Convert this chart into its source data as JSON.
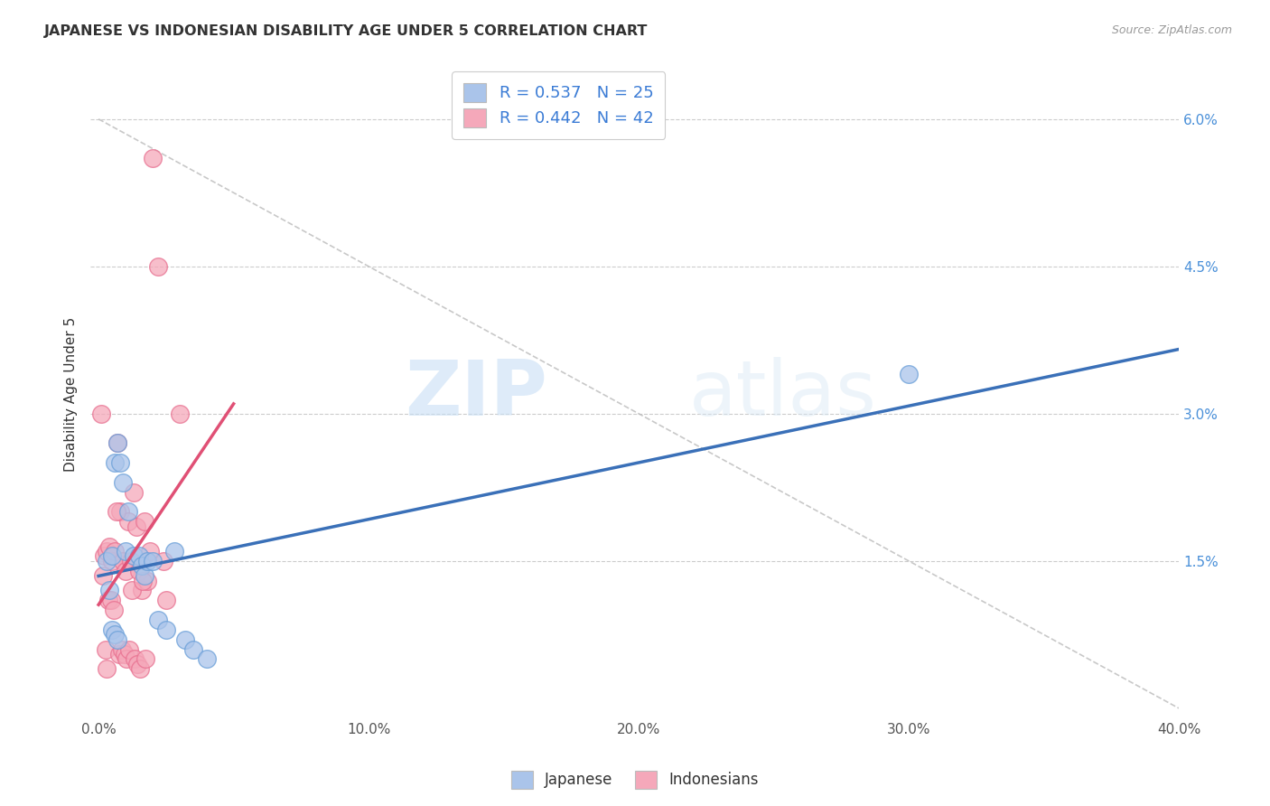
{
  "title": "JAPANESE VS INDONESIAN DISABILITY AGE UNDER 5 CORRELATION CHART",
  "source": "Source: ZipAtlas.com",
  "xlabel_ticks": [
    "0.0%",
    "10.0%",
    "20.0%",
    "30.0%",
    "40.0%"
  ],
  "xlabel_tick_vals": [
    0.0,
    10.0,
    20.0,
    30.0,
    40.0
  ],
  "ylabel_ticks": [
    "1.5%",
    "3.0%",
    "4.5%",
    "6.0%"
  ],
  "ylabel_tick_vals": [
    1.5,
    3.0,
    4.5,
    6.0
  ],
  "ylabel": "Disability Age Under 5",
  "xlim": [
    -0.3,
    40.0
  ],
  "ylim": [
    -0.1,
    6.5
  ],
  "japanese_color": "#aac4ea",
  "indonesian_color": "#f5a8ba",
  "japanese_edge": "#6a9fd8",
  "indonesian_edge": "#e87090",
  "japanese_R": 0.537,
  "japanese_N": 25,
  "indonesian_R": 0.442,
  "indonesian_N": 42,
  "japanese_scatter_x": [
    0.3,
    0.5,
    0.6,
    0.7,
    0.8,
    0.9,
    1.0,
    1.1,
    1.3,
    1.5,
    1.6,
    1.7,
    1.8,
    2.0,
    2.2,
    2.5,
    0.4,
    0.5,
    0.6,
    0.7,
    2.8,
    3.2,
    3.5,
    4.0,
    30.0
  ],
  "japanese_scatter_y": [
    1.5,
    1.55,
    2.5,
    2.7,
    2.5,
    2.3,
    1.6,
    2.0,
    1.55,
    1.55,
    1.45,
    1.35,
    1.5,
    1.5,
    0.9,
    0.8,
    1.2,
    0.8,
    0.75,
    0.7,
    1.6,
    0.7,
    0.6,
    0.5,
    3.4
  ],
  "indonesian_scatter_x": [
    0.1,
    0.2,
    0.3,
    0.4,
    0.5,
    0.6,
    0.7,
    0.8,
    0.9,
    1.0,
    1.1,
    1.2,
    1.3,
    1.4,
    1.5,
    1.6,
    1.7,
    1.8,
    1.9,
    2.0,
    2.2,
    2.4,
    0.15,
    0.25,
    0.35,
    0.45,
    0.55,
    0.65,
    0.75,
    0.85,
    0.95,
    1.05,
    1.15,
    1.25,
    1.35,
    1.45,
    1.55,
    1.65,
    1.75,
    2.5,
    3.0,
    0.3
  ],
  "indonesian_scatter_y": [
    3.0,
    1.55,
    1.6,
    1.65,
    1.5,
    1.6,
    2.7,
    2.0,
    1.5,
    1.4,
    1.9,
    1.5,
    2.2,
    1.85,
    1.4,
    1.2,
    1.9,
    1.3,
    1.6,
    5.6,
    4.5,
    1.5,
    1.35,
    0.6,
    1.1,
    1.1,
    1.0,
    2.0,
    0.55,
    0.6,
    0.55,
    0.5,
    0.6,
    1.2,
    0.5,
    0.45,
    0.4,
    1.3,
    0.5,
    1.1,
    3.0,
    0.4
  ],
  "watermark_zip": "ZIP",
  "watermark_atlas": "atlas",
  "background_color": "#ffffff",
  "grid_color": "#cccccc",
  "blue_trend_start_x": 0.0,
  "blue_trend_start_y": 1.1,
  "blue_trend_end_x": 40.0,
  "blue_trend_end_y": 3.2,
  "pink_trend_start_x": 0.0,
  "pink_trend_start_y": 0.5,
  "pink_trend_end_x": 5.0,
  "pink_trend_end_y": 3.0
}
